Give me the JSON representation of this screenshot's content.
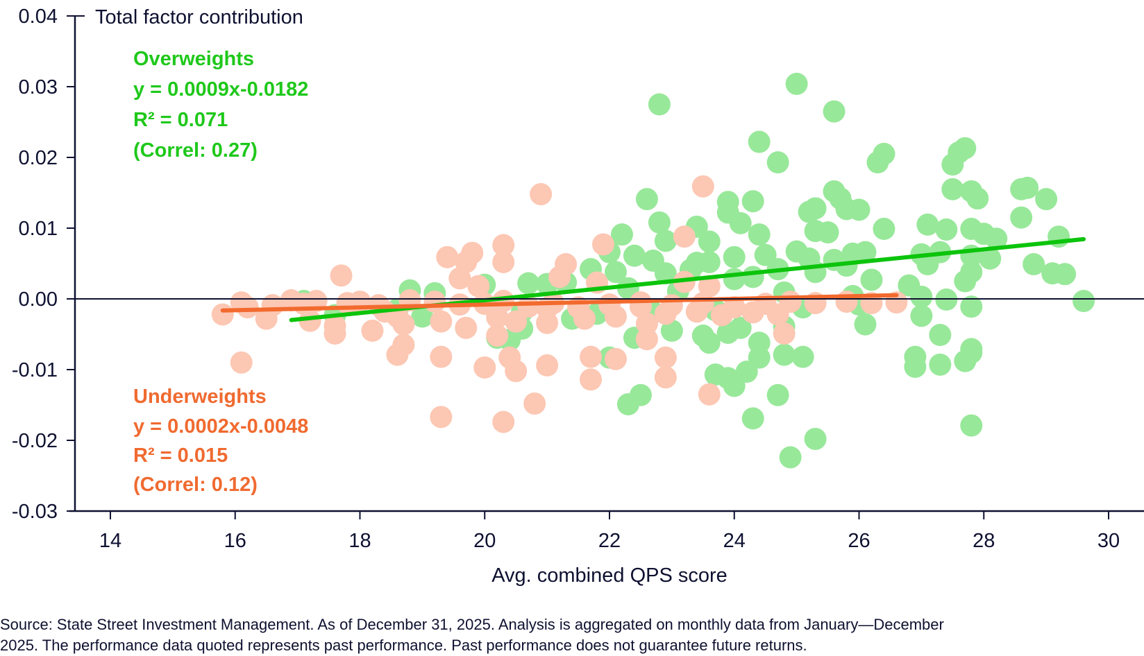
{
  "chart_data": {
    "type": "scatter",
    "title": "Total factor contribution",
    "xlabel": "Avg. combined QPS score",
    "ylabel": "Total factor contribution",
    "xlim": [
      14,
      30
    ],
    "ylim": [
      -0.03,
      0.04
    ],
    "x_ticks": [
      14,
      16,
      18,
      20,
      22,
      24,
      26,
      28,
      30
    ],
    "x_tick_labels": [
      "14",
      "16",
      "18",
      "20",
      "22",
      "24",
      "26",
      "28",
      "30"
    ],
    "y_ticks": [
      0.04,
      0.03,
      0.02,
      0.01,
      0.0,
      -0.01,
      -0.02,
      -0.03
    ],
    "y_tick_labels": [
      "0.04",
      "0.03",
      "0.02",
      "0.01",
      "0.00",
      "-0.01",
      "-0.02",
      "-0.03"
    ],
    "grid": false,
    "zero_line": true,
    "legend": "none",
    "series": [
      {
        "name": "Overweights",
        "color": "#98e89a",
        "trend_color": "#0cc40c",
        "annotation": [
          "Overweights",
          "y = 0.0009x-0.0182",
          "R² = 0.071",
          "(Correl: 0.27)"
        ],
        "trend": {
          "slope": 0.0009,
          "intercept": -0.0182,
          "x_range": [
            16.9,
            29.6
          ]
        },
        "points": [
          [
            25.0,
            0.0304
          ],
          [
            22.8,
            0.0275
          ],
          [
            25.6,
            0.0265
          ],
          [
            24.4,
            0.0222
          ],
          [
            24.7,
            0.0193
          ],
          [
            26.4,
            0.0205
          ],
          [
            26.3,
            0.0193
          ],
          [
            27.7,
            0.0213
          ],
          [
            27.6,
            0.0207
          ],
          [
            27.5,
            0.019
          ],
          [
            28.7,
            0.0157
          ],
          [
            28.6,
            0.0155
          ],
          [
            29.0,
            0.0141
          ],
          [
            28.6,
            0.0115
          ],
          [
            27.5,
            0.0155
          ],
          [
            27.8,
            0.0152
          ],
          [
            27.9,
            0.0142
          ],
          [
            25.2,
            0.0123
          ],
          [
            25.3,
            0.0128
          ],
          [
            25.6,
            0.0152
          ],
          [
            25.7,
            0.0142
          ],
          [
            25.8,
            0.0127
          ],
          [
            26.0,
            0.0126
          ],
          [
            22.6,
            0.0141
          ],
          [
            23.9,
            0.0137
          ],
          [
            24.3,
            0.0138
          ],
          [
            23.9,
            0.0122
          ],
          [
            24.1,
            0.0107
          ],
          [
            22.8,
            0.0108
          ],
          [
            23.4,
            0.0102
          ],
          [
            22.2,
            0.0091
          ],
          [
            22.9,
            0.0082
          ],
          [
            23.6,
            0.0081
          ],
          [
            24.4,
            0.0091
          ],
          [
            25.3,
            0.0096
          ],
          [
            25.5,
            0.0094
          ],
          [
            26.4,
            0.0099
          ],
          [
            27.1,
            0.0105
          ],
          [
            27.4,
            0.0098
          ],
          [
            27.8,
            0.0099
          ],
          [
            28.0,
            0.0092
          ],
          [
            28.2,
            0.0085
          ],
          [
            29.2,
            0.0088
          ],
          [
            22.0,
            0.0066
          ],
          [
            22.4,
            0.0061
          ],
          [
            22.7,
            0.0054
          ],
          [
            23.4,
            0.0051
          ],
          [
            23.6,
            0.0052
          ],
          [
            24.0,
            0.0059
          ],
          [
            24.5,
            0.0062
          ],
          [
            25.0,
            0.0067
          ],
          [
            25.2,
            0.0057
          ],
          [
            25.6,
            0.0055
          ],
          [
            25.9,
            0.0064
          ],
          [
            26.1,
            0.0066
          ],
          [
            27.0,
            0.0063
          ],
          [
            27.3,
            0.0066
          ],
          [
            27.8,
            0.0061
          ],
          [
            28.1,
            0.0057
          ],
          [
            28.8,
            0.0049
          ],
          [
            29.1,
            0.0036
          ],
          [
            29.3,
            0.0035
          ],
          [
            21.7,
            0.0042
          ],
          [
            22.1,
            0.0038
          ],
          [
            22.9,
            0.0036
          ],
          [
            23.3,
            0.0041
          ],
          [
            24.0,
            0.0028
          ],
          [
            24.3,
            0.0031
          ],
          [
            24.7,
            0.0042
          ],
          [
            25.3,
            0.0038
          ],
          [
            25.8,
            0.0047
          ],
          [
            26.2,
            0.0027
          ],
          [
            26.8,
            0.0019
          ],
          [
            27.1,
            0.0049
          ],
          [
            27.7,
            0.0025
          ],
          [
            27.8,
            0.0038
          ],
          [
            21.3,
            0.0023
          ],
          [
            20.7,
            0.0022
          ],
          [
            20.0,
            0.002
          ],
          [
            18.8,
            0.0012
          ],
          [
            19.2,
            0.0008
          ],
          [
            21.0,
            0.0021
          ],
          [
            22.3,
            0.0015
          ],
          [
            23.1,
            0.0011
          ],
          [
            24.8,
            0.0009
          ],
          [
            25.9,
            0.0004
          ],
          [
            27.0,
            0.0003
          ],
          [
            27.4,
            -0.0001
          ],
          [
            29.6,
            -0.0003
          ],
          [
            26.0,
            -0.0008
          ],
          [
            25.1,
            -0.0012
          ],
          [
            23.7,
            -0.0016
          ],
          [
            22.7,
            -0.0019
          ],
          [
            21.8,
            -0.0021
          ],
          [
            20.6,
            -0.0018
          ],
          [
            19.0,
            -0.0025
          ],
          [
            18.6,
            -0.0015
          ],
          [
            17.6,
            -0.0023
          ],
          [
            17.1,
            -0.0003
          ],
          [
            20.2,
            -0.0055
          ],
          [
            20.4,
            -0.0058
          ],
          [
            20.6,
            -0.0042
          ],
          [
            21.4,
            -0.0028
          ],
          [
            22.4,
            -0.0055
          ],
          [
            23.0,
            -0.0045
          ],
          [
            23.5,
            -0.0052
          ],
          [
            23.6,
            -0.0062
          ],
          [
            23.9,
            -0.0048
          ],
          [
            24.1,
            -0.0041
          ],
          [
            24.4,
            -0.0062
          ],
          [
            24.8,
            -0.0039
          ],
          [
            26.1,
            -0.0036
          ],
          [
            27.0,
            -0.0024
          ],
          [
            27.3,
            -0.0051
          ],
          [
            27.8,
            -0.0071
          ],
          [
            27.8,
            -0.0076
          ],
          [
            26.9,
            -0.0082
          ],
          [
            26.9,
            -0.0096
          ],
          [
            27.3,
            -0.0093
          ],
          [
            27.7,
            -0.0088
          ],
          [
            24.8,
            -0.0079
          ],
          [
            25.1,
            -0.0082
          ],
          [
            24.4,
            -0.0083
          ],
          [
            22.0,
            -0.0083
          ],
          [
            23.7,
            -0.0107
          ],
          [
            23.9,
            -0.0112
          ],
          [
            24.2,
            -0.0103
          ],
          [
            24.0,
            -0.0123
          ],
          [
            24.7,
            -0.0136
          ],
          [
            22.3,
            -0.0149
          ],
          [
            22.5,
            -0.0136
          ],
          [
            24.3,
            -0.0169
          ],
          [
            25.3,
            -0.0198
          ],
          [
            24.9,
            -0.0224
          ],
          [
            27.8,
            -0.0179
          ],
          [
            27.8,
            -0.0011
          ]
        ]
      },
      {
        "name": "Underweights",
        "color": "#fcc7b3",
        "trend_color": "#f26a2e",
        "annotation": [
          "Underweights",
          "y = 0.0002x-0.0048",
          "R² = 0.015",
          "(Correl: 0.12)"
        ],
        "trend": {
          "slope": 0.0002,
          "intercept": -0.0048,
          "x_range": [
            15.8,
            26.6
          ]
        },
        "points": [
          [
            23.5,
            0.0159
          ],
          [
            20.9,
            0.0148
          ],
          [
            21.9,
            0.0077
          ],
          [
            20.3,
            0.0076
          ],
          [
            23.2,
            0.0088
          ],
          [
            19.4,
            0.0059
          ],
          [
            19.8,
            0.0065
          ],
          [
            20.3,
            0.0052
          ],
          [
            21.3,
            0.0049
          ],
          [
            19.7,
            0.0052
          ],
          [
            17.7,
            0.0033
          ],
          [
            19.6,
            0.0029
          ],
          [
            21.2,
            0.0031
          ],
          [
            21.8,
            0.0023
          ],
          [
            23.2,
            0.0024
          ],
          [
            23.6,
            0.0018
          ],
          [
            19.9,
            0.0018
          ],
          [
            16.9,
            -0.0002
          ],
          [
            16.1,
            -0.0005
          ],
          [
            16.2,
            -0.0012
          ],
          [
            16.6,
            -0.0009
          ],
          [
            17.3,
            -0.0003
          ],
          [
            17.1,
            -0.0007
          ],
          [
            17.8,
            -0.0006
          ],
          [
            18.0,
            -0.0004
          ],
          [
            18.3,
            -0.0009
          ],
          [
            18.8,
            -0.0002
          ],
          [
            19.2,
            -0.0004
          ],
          [
            19.6,
            -0.0008
          ],
          [
            20.0,
            -0.0007
          ],
          [
            20.3,
            -0.0003
          ],
          [
            20.7,
            -0.0011
          ],
          [
            21.1,
            -0.0006
          ],
          [
            21.5,
            -0.0012
          ],
          [
            22.0,
            -0.0008
          ],
          [
            22.5,
            -0.0005
          ],
          [
            23.0,
            -0.0009
          ],
          [
            23.5,
            -0.0006
          ],
          [
            24.0,
            -0.0012
          ],
          [
            24.5,
            -0.0007
          ],
          [
            24.9,
            -0.0004
          ],
          [
            25.3,
            -0.0006
          ],
          [
            25.8,
            -0.0004
          ],
          [
            26.2,
            -0.0006
          ],
          [
            26.6,
            -0.0005
          ],
          [
            15.8,
            -0.0022
          ],
          [
            16.5,
            -0.0028
          ],
          [
            17.2,
            -0.0031
          ],
          [
            17.6,
            -0.0038
          ],
          [
            18.2,
            -0.0045
          ],
          [
            18.6,
            -0.0025
          ],
          [
            18.7,
            -0.0036
          ],
          [
            19.3,
            -0.0032
          ],
          [
            19.7,
            -0.0041
          ],
          [
            20.2,
            -0.0026
          ],
          [
            20.5,
            -0.0032
          ],
          [
            21.0,
            -0.0034
          ],
          [
            21.6,
            -0.0028
          ],
          [
            22.1,
            -0.0025
          ],
          [
            22.6,
            -0.0035
          ],
          [
            22.9,
            -0.0021
          ],
          [
            23.4,
            -0.0018
          ],
          [
            23.8,
            -0.0023
          ],
          [
            24.3,
            -0.0019
          ],
          [
            24.7,
            -0.0022
          ],
          [
            18.7,
            -0.0065
          ],
          [
            18.6,
            -0.0079
          ],
          [
            17.6,
            -0.0049
          ],
          [
            20.2,
            -0.0052
          ],
          [
            20.0,
            -0.0097
          ],
          [
            20.4,
            -0.0083
          ],
          [
            20.5,
            -0.0102
          ],
          [
            21.0,
            -0.0094
          ],
          [
            19.3,
            -0.0082
          ],
          [
            21.7,
            -0.0082
          ],
          [
            21.7,
            -0.0114
          ],
          [
            22.1,
            -0.0085
          ],
          [
            22.6,
            -0.0057
          ],
          [
            22.9,
            -0.0083
          ],
          [
            22.9,
            -0.0111
          ],
          [
            23.6,
            -0.0135
          ],
          [
            24.8,
            -0.0049
          ],
          [
            16.1,
            -0.009
          ],
          [
            19.3,
            -0.0167
          ],
          [
            20.3,
            -0.0174
          ],
          [
            20.8,
            -0.0148
          ],
          [
            22.5,
            -0.0011
          ],
          [
            21.0,
            -0.0013
          ],
          [
            18.4,
            -0.0018
          ]
        ]
      }
    ]
  },
  "annotations": {
    "y_axis_title": "Total factor contribution",
    "overweights": {
      "title": "Overweights",
      "equation": "y = 0.0009x-0.0182",
      "r2": "R² = 0.071",
      "correl": "(Correl: 0.27)"
    },
    "underweights": {
      "title": "Underweights",
      "equation": "y = 0.0002x-0.0048",
      "r2": "R² = 0.015",
      "correl": "(Correl: 0.12)"
    }
  },
  "footer": {
    "source_line1": "Source: State Street Investment Management. As of December 31, 2025. Analysis is aggregated on monthly data from January—December",
    "source_line2": "2025. The performance data quoted represents past performance. Past performance does not guarantee future returns."
  }
}
